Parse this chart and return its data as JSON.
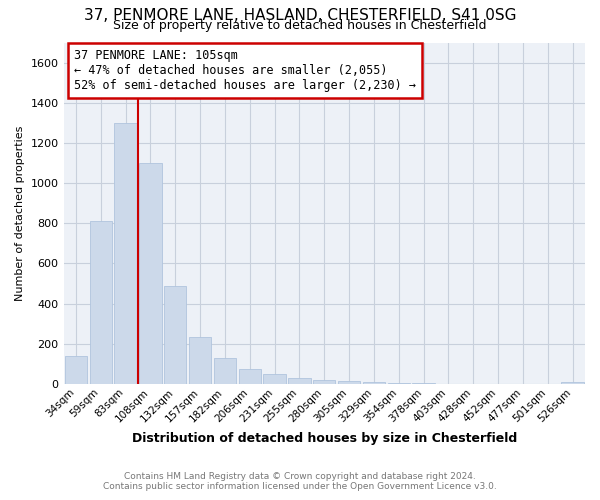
{
  "title": "37, PENMORE LANE, HASLAND, CHESTERFIELD, S41 0SG",
  "subtitle": "Size of property relative to detached houses in Chesterfield",
  "xlabel": "Distribution of detached houses by size in Chesterfield",
  "ylabel": "Number of detached properties",
  "categories": [
    "34sqm",
    "59sqm",
    "83sqm",
    "108sqm",
    "132sqm",
    "157sqm",
    "182sqm",
    "206sqm",
    "231sqm",
    "255sqm",
    "280sqm",
    "305sqm",
    "329sqm",
    "354sqm",
    "378sqm",
    "403sqm",
    "428sqm",
    "452sqm",
    "477sqm",
    "501sqm",
    "526sqm"
  ],
  "values": [
    140,
    810,
    1300,
    1100,
    490,
    235,
    130,
    75,
    50,
    30,
    20,
    15,
    10,
    5,
    3,
    2,
    1,
    1,
    1,
    1,
    10
  ],
  "bar_color": "#ccd9ea",
  "bar_edgecolor": "#b0c4de",
  "vline_color": "#cc0000",
  "annotation_line1": "37 PENMORE LANE: 105sqm",
  "annotation_line2": "← 47% of detached houses are smaller (2,055)",
  "annotation_line3": "52% of semi-detached houses are larger (2,230) →",
  "annotation_box_color": "#cc0000",
  "ylim": [
    0,
    1700
  ],
  "yticks": [
    0,
    200,
    400,
    600,
    800,
    1000,
    1200,
    1400,
    1600
  ],
  "footer_line1": "Contains HM Land Registry data © Crown copyright and database right 2024.",
  "footer_line2": "Contains public sector information licensed under the Open Government Licence v3.0.",
  "bg_color": "#ffffff",
  "plot_bg_color": "#edf1f7",
  "grid_color": "#c8d0dc"
}
